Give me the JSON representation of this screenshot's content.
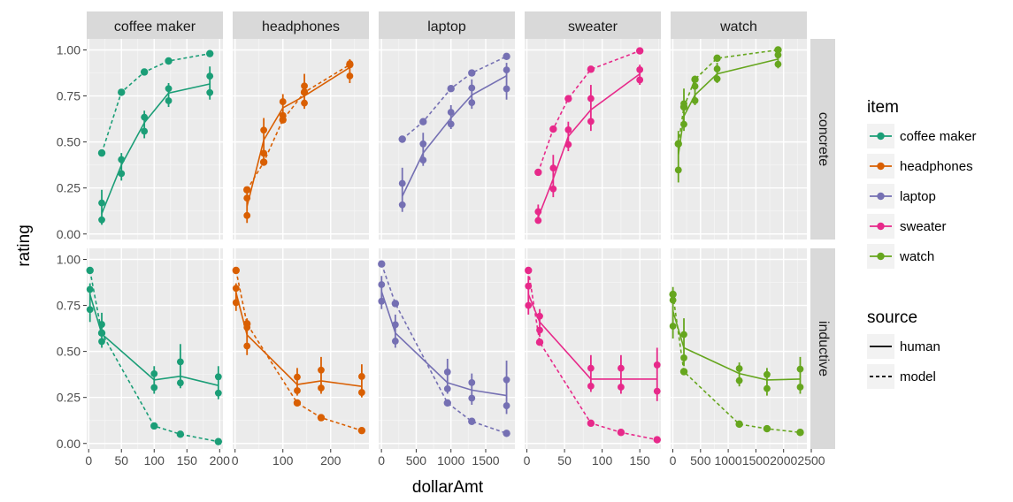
{
  "chart_data": {
    "type": "line",
    "xlabel": "dollarAmt",
    "ylabel": "rating",
    "grid": true,
    "legend_placement": "right",
    "panel_rows": [
      "concrete",
      "inductive"
    ],
    "y_ticks": [
      "0.00",
      "0.25",
      "0.50",
      "0.75",
      "1.00"
    ],
    "ylim": [
      -0.03,
      1.06
    ],
    "legend": {
      "item_title": "item",
      "items": [
        {
          "name": "coffee maker",
          "color": "#1b9e77"
        },
        {
          "name": "headphones",
          "color": "#d95f02"
        },
        {
          "name": "laptop",
          "color": "#7570b3"
        },
        {
          "name": "sweater",
          "color": "#e7298a"
        },
        {
          "name": "watch",
          "color": "#66a61e"
        }
      ],
      "source_title": "source",
      "sources": [
        {
          "name": "human",
          "line": "solid"
        },
        {
          "name": "model",
          "line": "dashed"
        }
      ]
    },
    "panels": [
      {
        "item": "coffee maker",
        "color": "#1b9e77",
        "xlim": [
          -3,
          205
        ],
        "xticks": [
          0,
          50,
          100,
          150,
          200
        ],
        "concrete": {
          "model": {
            "x": [
              20,
              50,
              85,
              122,
              185
            ],
            "y": [
              0.44,
              0.77,
              0.88,
              0.94,
              0.98
            ]
          },
          "human": {
            "x": [
              20,
              50,
              85,
              122,
              185
            ],
            "y": [
              0.11,
              0.375,
              0.605,
              0.765,
              0.815
            ],
            "lo": [
              0.05,
              0.29,
              0.52,
              0.69,
              0.73
            ],
            "hi": [
              0.24,
              0.44,
              0.67,
              0.82,
              0.91
            ]
          }
        },
        "inductive": {
          "model": {
            "x": [
              2,
              20,
              100,
              140,
              198
            ],
            "y": [
              0.94,
              0.6,
              0.095,
              0.05,
              0.01
            ]
          },
          "human": {
            "x": [
              2,
              20,
              100,
              140,
              198
            ],
            "y": [
              0.81,
              0.595,
              0.345,
              0.365,
              0.315
            ],
            "lo": [
              0.66,
              0.52,
              0.27,
              0.3,
              0.24
            ],
            "hi": [
              0.87,
              0.71,
              0.42,
              0.54,
              0.42
            ]
          }
        }
      },
      {
        "item": "headphones",
        "color": "#d95f02",
        "xlim": [
          -5,
          280
        ],
        "xticks": [
          0,
          100,
          200
        ],
        "concrete": {
          "model": {
            "x": [
              25,
              60,
              100,
              145,
              240
            ],
            "y": [
              0.24,
              0.39,
              0.62,
              0.77,
              0.92
            ]
          },
          "human": {
            "x": [
              25,
              60,
              100,
              145,
              240
            ],
            "y": [
              0.15,
              0.51,
              0.685,
              0.75,
              0.905
            ],
            "lo": [
              0.06,
              0.38,
              0.61,
              0.68,
              0.82
            ],
            "hi": [
              0.25,
              0.63,
              0.76,
              0.87,
              0.95
            ]
          }
        },
        "inductive": {
          "model": {
            "x": [
              2,
              25,
              130,
              180,
              265
            ],
            "y": [
              0.94,
              0.65,
              0.22,
              0.14,
              0.07
            ]
          },
          "human": {
            "x": [
              2,
              25,
              130,
              180,
              265
            ],
            "y": [
              0.82,
              0.59,
              0.32,
              0.34,
              0.31
            ],
            "lo": [
              0.72,
              0.48,
              0.26,
              0.27,
              0.25
            ],
            "hi": [
              0.87,
              0.68,
              0.41,
              0.47,
              0.43
            ]
          }
        }
      },
      {
        "item": "laptop",
        "color": "#7570b3",
        "xlim": [
          -40,
          1920
        ],
        "xticks": [
          0,
          500,
          1000,
          1500
        ],
        "xtick_labels": [
          "0",
          "500",
          "1000",
          "1500"
        ],
        "concrete": {
          "model": {
            "x": [
              300,
              600,
              1000,
              1300,
              1800
            ],
            "y": [
              0.515,
              0.61,
              0.79,
              0.875,
              0.965
            ]
          },
          "human": {
            "x": [
              300,
              600,
              1000,
              1300,
              1800
            ],
            "y": [
              0.205,
              0.44,
              0.63,
              0.755,
              0.86
            ],
            "lo": [
              0.12,
              0.37,
              0.57,
              0.68,
              0.73
            ],
            "hi": [
              0.36,
              0.55,
              0.7,
              0.84,
              0.93
            ]
          }
        },
        "inductive": {
          "model": {
            "x": [
              2,
              200,
              950,
              1300,
              1800
            ],
            "y": [
              0.975,
              0.76,
              0.22,
              0.12,
              0.055
            ]
          },
          "human": {
            "x": [
              2,
              200,
              950,
              1300,
              1800
            ],
            "y": [
              0.825,
              0.6,
              0.33,
              0.29,
              0.26
            ],
            "lo": [
              0.73,
              0.52,
              0.27,
              0.21,
              0.16
            ],
            "hi": [
              0.91,
              0.7,
              0.46,
              0.38,
              0.45
            ]
          }
        }
      },
      {
        "item": "sweater",
        "color": "#e7298a",
        "xlim": [
          -3,
          178
        ],
        "xticks": [
          0,
          50,
          100,
          150
        ],
        "concrete": {
          "model": {
            "x": [
              15,
              35,
              55,
              85,
              150
            ],
            "y": [
              0.335,
              0.57,
              0.735,
              0.895,
              0.995
            ]
          },
          "human": {
            "x": [
              15,
              35,
              55,
              85,
              150
            ],
            "y": [
              0.09,
              0.3,
              0.53,
              0.675,
              0.87
            ],
            "lo": [
              0.06,
              0.2,
              0.45,
              0.56,
              0.81
            ],
            "hi": [
              0.16,
              0.43,
              0.61,
              0.81,
              0.92
            ]
          }
        },
        "inductive": {
          "model": {
            "x": [
              2,
              17,
              85,
              125,
              173
            ],
            "y": [
              0.94,
              0.55,
              0.11,
              0.06,
              0.02
            ]
          },
          "human": {
            "x": [
              2,
              17,
              85,
              125,
              173
            ],
            "y": [
              0.81,
              0.66,
              0.35,
              0.35,
              0.35
            ],
            "lo": [
              0.7,
              0.58,
              0.28,
              0.27,
              0.23
            ],
            "hi": [
              0.91,
              0.73,
              0.48,
              0.48,
              0.52
            ]
          }
        }
      },
      {
        "item": "watch",
        "color": "#66a61e",
        "xlim": [
          -40,
          2420
        ],
        "xticks": [
          0,
          500,
          1000,
          1500,
          2000,
          2500
        ],
        "xtick_labels": [
          "0",
          "500",
          "1000",
          "1500",
          "2000",
          "2500"
        ],
        "concrete": {
          "model": {
            "x": [
              100,
              200,
              400,
              800,
              1900
            ],
            "y": [
              0.49,
              0.69,
              0.84,
              0.955,
              1.0
            ]
          },
          "human": {
            "x": [
              100,
              200,
              400,
              800,
              1900
            ],
            "y": [
              0.43,
              0.64,
              0.755,
              0.87,
              0.95
            ],
            "lo": [
              0.28,
              0.56,
              0.7,
              0.82,
              0.9
            ],
            "hi": [
              0.56,
              0.79,
              0.86,
              0.93,
              1.0
            ]
          }
        },
        "inductive": {
          "model": {
            "x": [
              2,
              200,
              1200,
              1700,
              2300
            ],
            "y": [
              0.81,
              0.39,
              0.105,
              0.08,
              0.06
            ]
          },
          "human": {
            "x": [
              2,
              200,
              1200,
              1700,
              2300
            ],
            "y": [
              0.72,
              0.52,
              0.38,
              0.345,
              0.35
            ],
            "lo": [
              0.57,
              0.42,
              0.31,
              0.26,
              0.27
            ],
            "hi": [
              0.85,
              0.68,
              0.44,
              0.41,
              0.47
            ]
          }
        }
      }
    ]
  }
}
